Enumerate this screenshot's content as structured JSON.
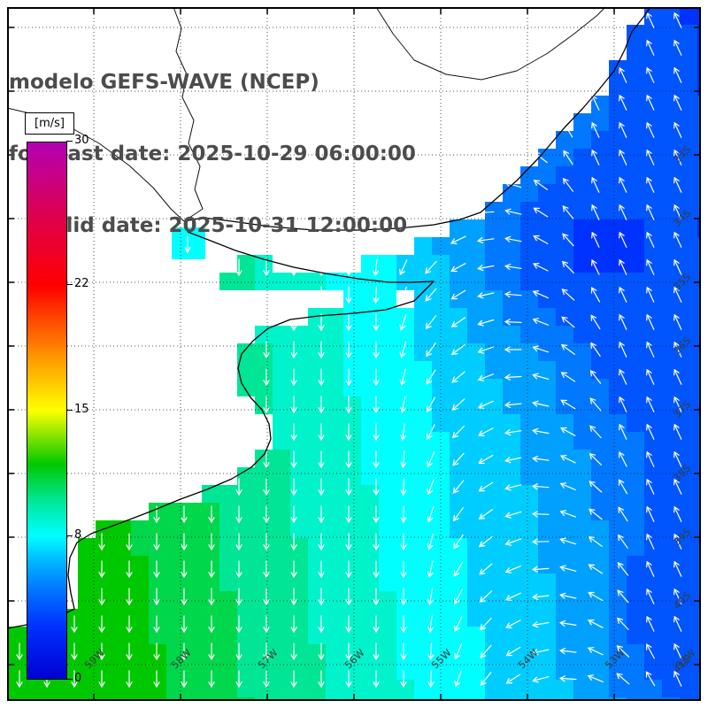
{
  "header": {
    "model_line": "modelo GEFS-WAVE (NCEP)",
    "forecast_line": "forecast date: 2025-10-29 06:00:00",
    "valid_line": "valid date: 2025-10-31 12:00:00"
  },
  "colorbar": {
    "unit_label": "[m/s]",
    "min": 0,
    "max": 30,
    "tick_labels": [
      "30",
      "22",
      "15",
      "8",
      "0"
    ],
    "gradient_stops": [
      {
        "value": 0,
        "color": "#0000d2"
      },
      {
        "value": 3,
        "color": "#0032ff"
      },
      {
        "value": 5,
        "color": "#0078ff"
      },
      {
        "value": 6.5,
        "color": "#00b4ff"
      },
      {
        "value": 8,
        "color": "#00ffff"
      },
      {
        "value": 10,
        "color": "#00e696"
      },
      {
        "value": 12,
        "color": "#00c800"
      },
      {
        "value": 15,
        "color": "#ffff00"
      },
      {
        "value": 18,
        "color": "#ff9600"
      },
      {
        "value": 22,
        "color": "#ff0000"
      },
      {
        "value": 26,
        "color": "#dc0050"
      },
      {
        "value": 30,
        "color": "#b400b4"
      }
    ]
  },
  "map": {
    "lat_labels": [
      "33S",
      "34S",
      "35S",
      "36S",
      "37S",
      "38S",
      "39S",
      "40S",
      "41S"
    ],
    "lon_labels": [
      "59W",
      "58W",
      "57W",
      "56W",
      "55W",
      "54W",
      "53W",
      "52W"
    ],
    "arrow_color": "#ffffff",
    "land_color": "#ffffff"
  }
}
